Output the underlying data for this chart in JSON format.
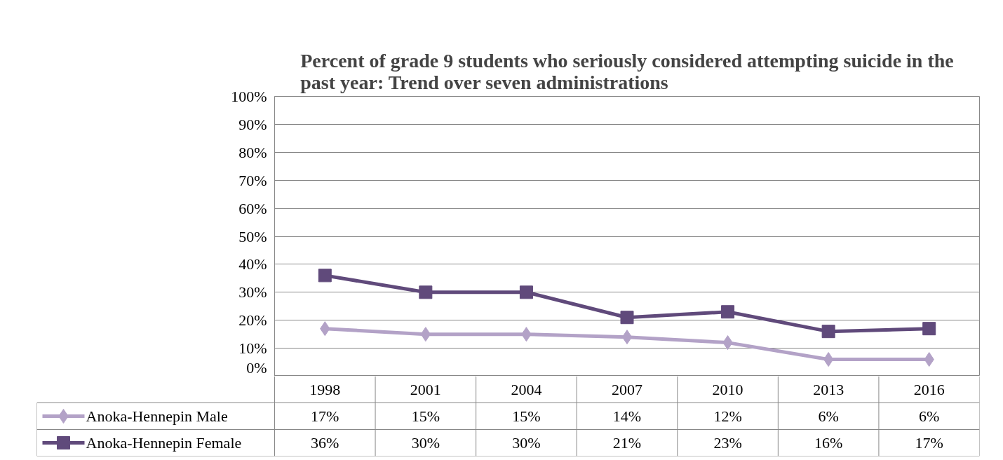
{
  "chart_data": {
    "type": "line",
    "title": "Percent of grade 9 students who seriously considered attempting suicide in the past year: Trend over seven administrations",
    "categories": [
      "1998",
      "2001",
      "2004",
      "2007",
      "2010",
      "2013",
      "2016"
    ],
    "series": [
      {
        "name": "Anoka-Hennepin Male",
        "color": "#b3a2c7",
        "marker": "diamond",
        "values": [
          17,
          15,
          15,
          14,
          12,
          6,
          6
        ],
        "value_labels": [
          "17%",
          "15%",
          "15%",
          "14%",
          "12%",
          "6%",
          "6%"
        ]
      },
      {
        "name": "Anoka-Hennepin Female",
        "color": "#604a7b",
        "marker": "square",
        "values": [
          36,
          30,
          30,
          21,
          23,
          16,
          17
        ],
        "value_labels": [
          "36%",
          "30%",
          "30%",
          "21%",
          "23%",
          "16%",
          "17%"
        ]
      }
    ],
    "ylim": [
      0,
      100
    ],
    "yticks": [
      {
        "value": 0,
        "label": "0%"
      },
      {
        "value": 10,
        "label": "10%"
      },
      {
        "value": 20,
        "label": "20%"
      },
      {
        "value": 30,
        "label": "30%"
      },
      {
        "value": 40,
        "label": "40%"
      },
      {
        "value": 50,
        "label": "50%"
      },
      {
        "value": 60,
        "label": "60%"
      },
      {
        "value": 70,
        "label": "70%"
      },
      {
        "value": 80,
        "label": "80%"
      },
      {
        "value": 90,
        "label": "90%"
      },
      {
        "value": 100,
        "label": "100%"
      }
    ],
    "grid": "y",
    "legend": "bottom",
    "line_style": "solid"
  }
}
